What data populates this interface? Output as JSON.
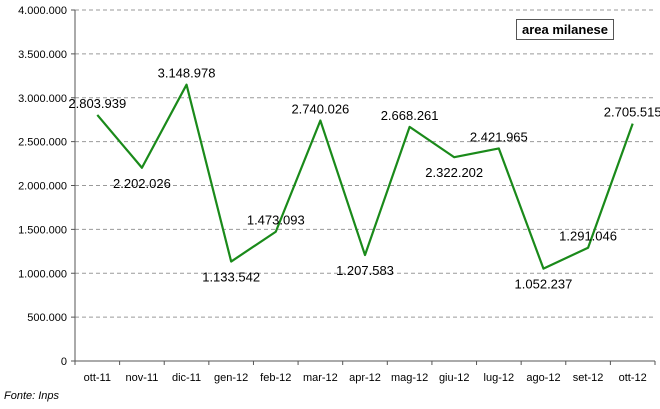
{
  "chart_data": {
    "type": "line",
    "categories": [
      "ott-11",
      "nov-11",
      "dic-11",
      "gen-12",
      "feb-12",
      "mar-12",
      "apr-12",
      "mag-12",
      "giu-12",
      "lug-12",
      "ago-12",
      "set-12",
      "ott-12"
    ],
    "series": [
      {
        "name": "area milanese",
        "values": [
          2803939,
          2202026,
          3148978,
          1133542,
          1473093,
          2740026,
          1207583,
          2668261,
          2322202,
          2421965,
          1052237,
          1291046,
          2705515
        ],
        "labels": [
          "2.803.939",
          "2.202.026",
          "3.148.978",
          "1.133.542",
          "1.473.093",
          "2.740.026",
          "1.207.583",
          "2.668.261",
          "2.322.202",
          "2.421.965",
          "1.052.237",
          "1.291.046",
          "2.705.515"
        ]
      }
    ],
    "yticks": [
      0,
      500000,
      1000000,
      1500000,
      2000000,
      2500000,
      3000000,
      3500000,
      4000000
    ],
    "ytick_labels": [
      "0",
      "500.000",
      "1.000.000",
      "1.500.000",
      "2.000.000",
      "2.500.000",
      "3.000.000",
      "3.500.000",
      "4.000.000"
    ],
    "ylim": [
      0,
      4000000
    ],
    "grid": true,
    "legend": "top-right",
    "line_color": "#1a8a1a",
    "source": "Fonte: Inps"
  }
}
